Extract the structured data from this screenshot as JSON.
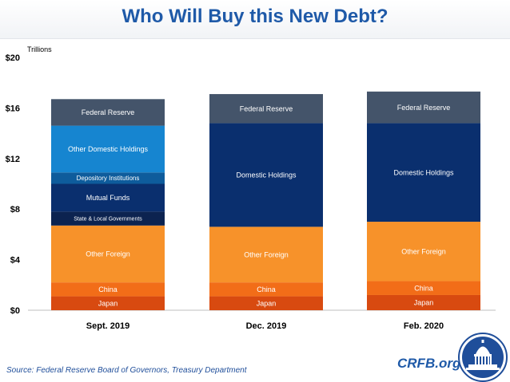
{
  "header": {
    "title": "Who Will Buy this New Debt?"
  },
  "footer": {
    "source": "Source: Federal Reserve Board of Governors, Treasury Department",
    "brand": "CRFB.org"
  },
  "logo": {
    "icon": "capitol-dome-seal-icon",
    "color": "#1f4e9a"
  },
  "chart_data": {
    "type": "bar",
    "stacked": true,
    "ylabel": "Trillions",
    "ylim": [
      0,
      20
    ],
    "yticks": [
      0,
      4,
      8,
      12,
      16,
      20
    ],
    "ytick_labels": [
      "$0",
      "$4",
      "$8",
      "$12",
      "$16",
      "$20"
    ],
    "grid": false,
    "categories": [
      "Sept. 2019",
      "Dec. 2019",
      "Feb. 2020"
    ],
    "series": [
      {
        "name": "Japan",
        "values": [
          1.1,
          1.1,
          1.2
        ],
        "color": "#d84a10",
        "text_color": "#ffffff",
        "label_size": 9
      },
      {
        "name": "China",
        "values": [
          1.1,
          1.1,
          1.1
        ],
        "color": "#f26d18",
        "text_color": "#ffffff",
        "label_size": 9
      },
      {
        "name": "Other Foreign",
        "values": [
          4.5,
          4.4,
          4.7
        ],
        "color": "#f7922a",
        "text_color": "#ffffff",
        "label_size": 9
      },
      {
        "name": "State & Local Governments",
        "values": [
          1.1,
          0,
          0
        ],
        "color": "#0c2350",
        "text_color": "#ffffff",
        "label_size": 7
      },
      {
        "name": "Mutual Funds",
        "values": [
          2.2,
          0,
          0
        ],
        "color": "#0a2f6e",
        "text_color": "#ffffff",
        "label_size": 9
      },
      {
        "name": "Depository Institutions",
        "values": [
          0.9,
          0,
          0
        ],
        "color": "#0e5c9c",
        "text_color": "#ffffff",
        "label_size": 8
      },
      {
        "name": "Other Domestic Holdings",
        "values": [
          3.7,
          0,
          0
        ],
        "color": "#1685d0",
        "text_color": "#ffffff",
        "label_size": 9
      },
      {
        "name": "Domestic Holdings",
        "values": [
          0,
          8.2,
          7.8
        ],
        "color": "#0a2f6e",
        "text_color": "#ffffff",
        "label_size": 9
      },
      {
        "name": "Federal Reserve",
        "values": [
          2.1,
          2.3,
          2.5
        ],
        "color": "#44546a",
        "text_color": "#ffffff",
        "label_size": 9
      }
    ]
  }
}
